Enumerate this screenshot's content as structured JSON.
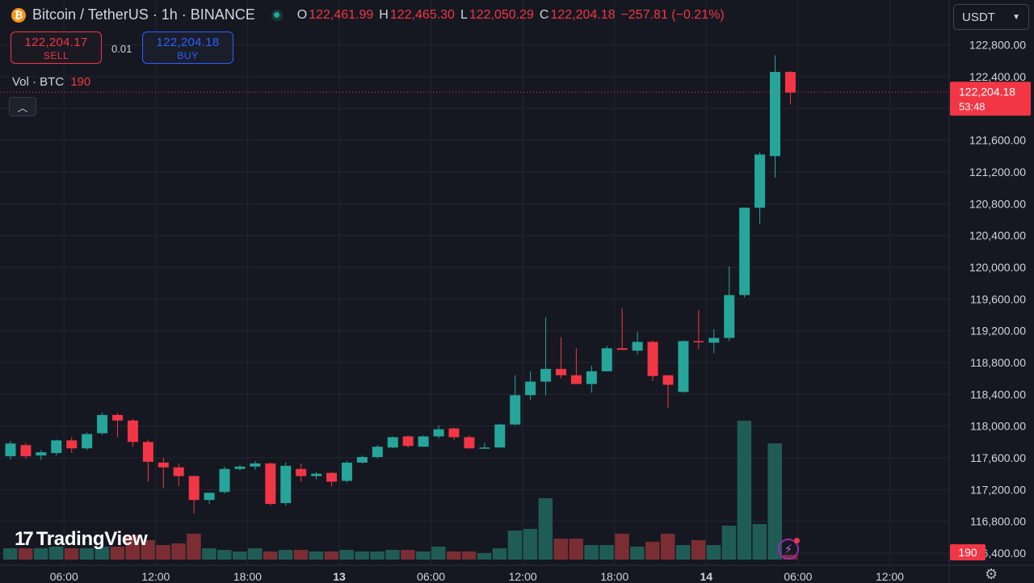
{
  "header": {
    "coin_icon": "bitcoin-icon",
    "symbol": "Bitcoin / TetherUS · 1h · BINANCE",
    "ohlc": {
      "o_label": "O",
      "o": "122,461.99",
      "h_label": "H",
      "h": "122,465.30",
      "l_label": "L",
      "l": "122,050.29",
      "c_label": "C",
      "c": "122,204.18",
      "change": "−257.81 (−0.21%)"
    }
  },
  "trade": {
    "sell_price": "122,204.17",
    "sell_label": "SELL",
    "spread": "0.01",
    "buy_price": "122,204.18",
    "buy_label": "BUY"
  },
  "volume": {
    "label": "Vol · BTC",
    "value": "190"
  },
  "currency": {
    "selected": "USDT"
  },
  "branding": {
    "logo": "TradingView"
  },
  "colors": {
    "up": "#26a69a",
    "down": "#f23645",
    "vol_up": "#1f5c56",
    "vol_down": "#7a2e33"
  },
  "chart_data": {
    "type": "candlestick",
    "interval": "1h",
    "ylim": [
      116400,
      123000
    ],
    "y_ticks": [
      "122,800.00",
      "122,400.00",
      "122,000.00",
      "121,600.00",
      "121,200.00",
      "120,800.00",
      "120,400.00",
      "120,000.00",
      "119,600.00",
      "119,200.00",
      "118,800.00",
      "118,400.00",
      "118,000.00",
      "117,600.00",
      "117,200.00",
      "116,800.00",
      "116,400.00"
    ],
    "y_tick_values": [
      122800,
      122400,
      122000,
      121600,
      121200,
      120800,
      120400,
      120000,
      119600,
      119200,
      118800,
      118400,
      118000,
      117600,
      117200,
      116800,
      116400
    ],
    "x_ticks": [
      {
        "label": "06:00",
        "index": 3.5
      },
      {
        "label": "12:00",
        "index": 9.5
      },
      {
        "label": "18:00",
        "index": 15.5
      },
      {
        "label": "13",
        "index": 21.5
      },
      {
        "label": "06:00",
        "index": 27.5
      },
      {
        "label": "12:00",
        "index": 33.5
      },
      {
        "label": "18:00",
        "index": 39.5
      },
      {
        "label": "14",
        "index": 45.5
      },
      {
        "label": "06:00",
        "index": 51.5
      },
      {
        "label": "12:00",
        "index": 57.5
      }
    ],
    "last_price_label": "122,204.18",
    "last_price": 122204.18,
    "countdown": "53:48",
    "volume_label": "190",
    "candles": [
      {
        "o": 117620,
        "h": 117810,
        "l": 117580,
        "c": 117780,
        "v": 7
      },
      {
        "o": 117760,
        "h": 117790,
        "l": 117590,
        "c": 117620,
        "v": 7
      },
      {
        "o": 117630,
        "h": 117700,
        "l": 117570,
        "c": 117670,
        "v": 7
      },
      {
        "o": 117660,
        "h": 117830,
        "l": 117630,
        "c": 117820,
        "v": 8
      },
      {
        "o": 117820,
        "h": 117860,
        "l": 117660,
        "c": 117720,
        "v": 7
      },
      {
        "o": 117720,
        "h": 117920,
        "l": 117700,
        "c": 117900,
        "v": 7
      },
      {
        "o": 117910,
        "h": 118170,
        "l": 117890,
        "c": 118140,
        "v": 8
      },
      {
        "o": 118140,
        "h": 118160,
        "l": 117860,
        "c": 118070,
        "v": 8
      },
      {
        "o": 118070,
        "h": 118090,
        "l": 117740,
        "c": 117800,
        "v": 15
      },
      {
        "o": 117800,
        "h": 117830,
        "l": 117300,
        "c": 117550,
        "v": 12
      },
      {
        "o": 117540,
        "h": 117600,
        "l": 117220,
        "c": 117480,
        "v": 9
      },
      {
        "o": 117480,
        "h": 117530,
        "l": 117240,
        "c": 117370,
        "v": 10
      },
      {
        "o": 117370,
        "h": 117380,
        "l": 116900,
        "c": 117070,
        "v": 16
      },
      {
        "o": 117070,
        "h": 117160,
        "l": 117020,
        "c": 117160,
        "v": 7
      },
      {
        "o": 117170,
        "h": 117490,
        "l": 117150,
        "c": 117460,
        "v": 6
      },
      {
        "o": 117460,
        "h": 117510,
        "l": 117440,
        "c": 117490,
        "v": 5
      },
      {
        "o": 117490,
        "h": 117560,
        "l": 117450,
        "c": 117530,
        "v": 7
      },
      {
        "o": 117530,
        "h": 117540,
        "l": 117000,
        "c": 117020,
        "v": 5
      },
      {
        "o": 117030,
        "h": 117540,
        "l": 117000,
        "c": 117500,
        "v": 6
      },
      {
        "o": 117460,
        "h": 117530,
        "l": 117300,
        "c": 117370,
        "v": 6
      },
      {
        "o": 117370,
        "h": 117420,
        "l": 117330,
        "c": 117400,
        "v": 5
      },
      {
        "o": 117410,
        "h": 117420,
        "l": 117240,
        "c": 117300,
        "v": 5
      },
      {
        "o": 117310,
        "h": 117560,
        "l": 117290,
        "c": 117540,
        "v": 6
      },
      {
        "o": 117540,
        "h": 117630,
        "l": 117530,
        "c": 117610,
        "v": 5
      },
      {
        "o": 117610,
        "h": 117760,
        "l": 117590,
        "c": 117740,
        "v": 5
      },
      {
        "o": 117730,
        "h": 117870,
        "l": 117720,
        "c": 117860,
        "v": 6
      },
      {
        "o": 117870,
        "h": 117880,
        "l": 117730,
        "c": 117750,
        "v": 6
      },
      {
        "o": 117740,
        "h": 117880,
        "l": 117740,
        "c": 117870,
        "v": 5
      },
      {
        "o": 117870,
        "h": 118010,
        "l": 117840,
        "c": 117960,
        "v": 8
      },
      {
        "o": 117970,
        "h": 117980,
        "l": 117820,
        "c": 117860,
        "v": 5
      },
      {
        "o": 117860,
        "h": 117880,
        "l": 117710,
        "c": 117720,
        "v": 5
      },
      {
        "o": 117720,
        "h": 117790,
        "l": 117720,
        "c": 117730,
        "v": 4
      },
      {
        "o": 117730,
        "h": 118030,
        "l": 117730,
        "c": 118020,
        "v": 7
      },
      {
        "o": 118020,
        "h": 118640,
        "l": 118010,
        "c": 118390,
        "v": 18
      },
      {
        "o": 118390,
        "h": 118690,
        "l": 118330,
        "c": 118560,
        "v": 19
      },
      {
        "o": 118560,
        "h": 119370,
        "l": 118390,
        "c": 118720,
        "v": 38
      },
      {
        "o": 118720,
        "h": 119120,
        "l": 118600,
        "c": 118640,
        "v": 13
      },
      {
        "o": 118640,
        "h": 118980,
        "l": 118540,
        "c": 118530,
        "v": 13
      },
      {
        "o": 118530,
        "h": 118760,
        "l": 118420,
        "c": 118690,
        "v": 9
      },
      {
        "o": 118690,
        "h": 119010,
        "l": 118690,
        "c": 118980,
        "v": 9
      },
      {
        "o": 118980,
        "h": 119480,
        "l": 118960,
        "c": 118960,
        "v": 16
      },
      {
        "o": 118950,
        "h": 119190,
        "l": 118900,
        "c": 119060,
        "v": 8
      },
      {
        "o": 119060,
        "h": 119080,
        "l": 118570,
        "c": 118630,
        "v": 11
      },
      {
        "o": 118640,
        "h": 118640,
        "l": 118230,
        "c": 118520,
        "v": 16
      },
      {
        "o": 118430,
        "h": 119080,
        "l": 118420,
        "c": 119070,
        "v": 9
      },
      {
        "o": 119070,
        "h": 119460,
        "l": 118970,
        "c": 119060,
        "v": 12
      },
      {
        "o": 119050,
        "h": 119220,
        "l": 118920,
        "c": 119110,
        "v": 9
      },
      {
        "o": 119110,
        "h": 120010,
        "l": 119070,
        "c": 119650,
        "v": 21
      },
      {
        "o": 119650,
        "h": 120750,
        "l": 119620,
        "c": 120750,
        "v": 86
      },
      {
        "o": 120750,
        "h": 121450,
        "l": 120550,
        "c": 121420,
        "v": 22
      },
      {
        "o": 121400,
        "h": 122670,
        "l": 121130,
        "c": 122460,
        "v": 72
      },
      {
        "o": 122460,
        "h": 122470,
        "l": 122050,
        "c": 122200,
        "v": 3
      }
    ]
  }
}
